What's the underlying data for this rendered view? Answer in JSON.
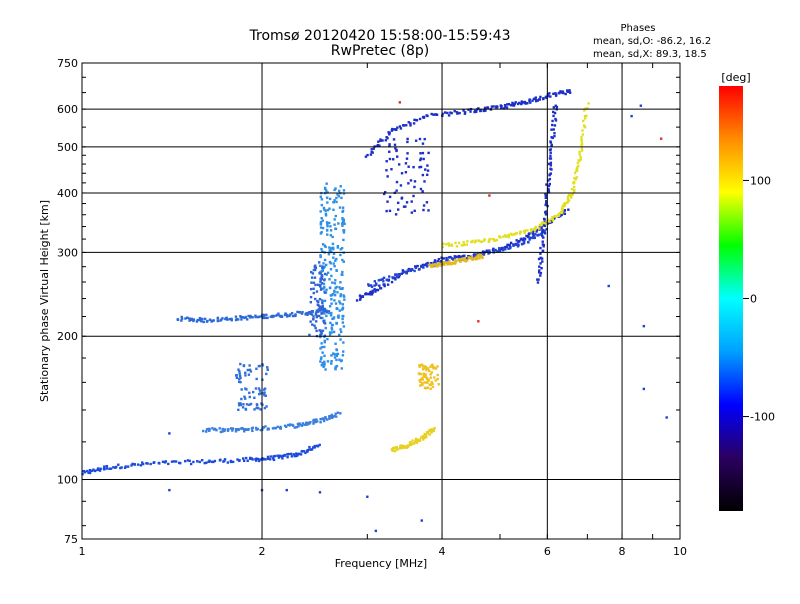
{
  "chart_data": {
    "type": "scatter",
    "title": "Tromsø 20120420 15:58:00-15:59:43",
    "subtitle": "RwPretec (8p)",
    "xlabel": "Frequency [MHz]",
    "ylabel": "Stationary phase Virtual Height [km]",
    "x_scale": "log",
    "y_scale": "log",
    "xlim": [
      1,
      10
    ],
    "ylim": [
      75,
      750
    ],
    "x_ticks": [
      1,
      2,
      4,
      6,
      8,
      10
    ],
    "x_tick_labels": [
      "1",
      "2",
      "4",
      "6",
      "8",
      "10"
    ],
    "y_ticks": [
      75,
      100,
      200,
      300,
      400,
      500,
      600,
      750
    ],
    "y_tick_labels": [
      "75",
      "100",
      "200",
      "300",
      "400",
      "500",
      "600",
      "750"
    ],
    "grid": true,
    "phases": {
      "heading": "Phases",
      "o_line": "mean, sd,O:  -86.2, 16.2",
      "x_line": "mean, sd,X:  89.3, 18.5"
    },
    "colorbar": {
      "label": "[deg]",
      "range": [
        -180,
        180
      ],
      "ticks": [
        100,
        0,
        -100
      ],
      "tick_labels": [
        "100",
        "0",
        "-100"
      ],
      "colors": [
        "#000000",
        "#2a0060",
        "#0000ff",
        "#00a0ff",
        "#00ffff",
        "#00ff00",
        "#ffff00",
        "#ff8c00",
        "#ff0000"
      ]
    },
    "series": [
      {
        "type": "trace",
        "color": "#1c4bdc",
        "x": [
          1.0,
          1.1,
          1.3,
          1.6,
          1.9,
          2.1,
          2.3,
          2.5
        ],
        "y": [
          103,
          106,
          108,
          109,
          110,
          111,
          113,
          118
        ]
      },
      {
        "type": "trace",
        "color": "#2d6ad8",
        "x": [
          1.45,
          1.6,
          1.8,
          2.0,
          2.2,
          2.4,
          2.6
        ],
        "y": [
          218,
          216,
          218,
          220,
          222,
          224,
          226
        ]
      },
      {
        "type": "trace",
        "color": "#3a7ee0",
        "x": [
          1.6,
          1.8,
          2.0,
          2.3,
          2.5,
          2.7
        ],
        "y": [
          127,
          127,
          128,
          130,
          133,
          138
        ]
      },
      {
        "type": "cluster",
        "color": "#2f8fe6",
        "x": [
          2.5,
          2.75
        ],
        "y": [
          170,
          420
        ],
        "n": 90
      },
      {
        "type": "cluster",
        "color": "#2f63d6",
        "x": [
          2.4,
          2.55
        ],
        "y": [
          200,
          290
        ],
        "n": 30
      },
      {
        "type": "cluster",
        "color": "#2f70dc",
        "x": [
          1.8,
          2.05
        ],
        "y": [
          140,
          175
        ],
        "n": 25
      },
      {
        "type": "trace",
        "color": "#1d2fc8",
        "x": [
          2.9,
          3.1,
          3.5,
          4.0,
          4.5,
          5.0,
          5.5,
          6.0,
          6.5
        ],
        "y": [
          240,
          250,
          275,
          290,
          295,
          305,
          320,
          345,
          370
        ]
      },
      {
        "type": "trace",
        "color": "#1d2fc8",
        "x": [
          3.0,
          3.3,
          3.8,
          4.5,
          5.0,
          5.5,
          6.0,
          6.6
        ],
        "y": [
          480,
          540,
          580,
          595,
          605,
          620,
          640,
          655
        ]
      },
      {
        "type": "trace",
        "color": "#2346d3",
        "x": [
          3.0,
          3.4,
          4.0,
          4.8,
          5.5,
          6.0
        ],
        "y": [
          255,
          270,
          285,
          300,
          315,
          335
        ]
      },
      {
        "type": "trace",
        "color": "#1d2fc8",
        "x": [
          5.8,
          5.9,
          6.0,
          6.1,
          6.2
        ],
        "y": [
          260,
          320,
          400,
          500,
          620
        ]
      },
      {
        "type": "trace",
        "color": "#e0e020",
        "x": [
          4.0,
          4.6,
          5.2,
          5.8,
          6.3,
          6.6,
          6.8,
          7.0
        ],
        "y": [
          310,
          315,
          325,
          340,
          360,
          400,
          480,
          620
        ]
      },
      {
        "type": "trace",
        "color": "#e8d020",
        "x": [
          3.3,
          3.5,
          3.7,
          3.9
        ],
        "y": [
          115,
          118,
          122,
          128
        ]
      },
      {
        "type": "cluster",
        "color": "#f0c020",
        "x": [
          3.65,
          3.95
        ],
        "y": [
          155,
          175
        ],
        "n": 22
      },
      {
        "type": "trace",
        "color": "#e0b820",
        "x": [
          3.8,
          4.1,
          4.4,
          4.7
        ],
        "y": [
          280,
          285,
          290,
          295
        ]
      },
      {
        "type": "cluster",
        "color": "#1d2fc8",
        "x": [
          3.2,
          3.8
        ],
        "y": [
          360,
          520
        ],
        "n": 25
      },
      {
        "type": "scatter",
        "color": "#2040d0",
        "points": [
          [
            1.4,
            95
          ],
          [
            2.0,
            95
          ],
          [
            2.2,
            95
          ],
          [
            2.5,
            94
          ],
          [
            3.0,
            92
          ],
          [
            3.1,
            78
          ],
          [
            8.7,
            210
          ],
          [
            8.6,
            610
          ],
          [
            8.7,
            155
          ],
          [
            9.5,
            135
          ],
          [
            8.3,
            580
          ],
          [
            7.6,
            255
          ],
          [
            1.4,
            125
          ],
          [
            3.7,
            82
          ]
        ]
      },
      {
        "type": "scatter",
        "color": "#e03020",
        "points": [
          [
            4.8,
            395
          ],
          [
            4.6,
            215
          ],
          [
            9.3,
            520
          ],
          [
            3.4,
            620
          ]
        ]
      }
    ]
  }
}
